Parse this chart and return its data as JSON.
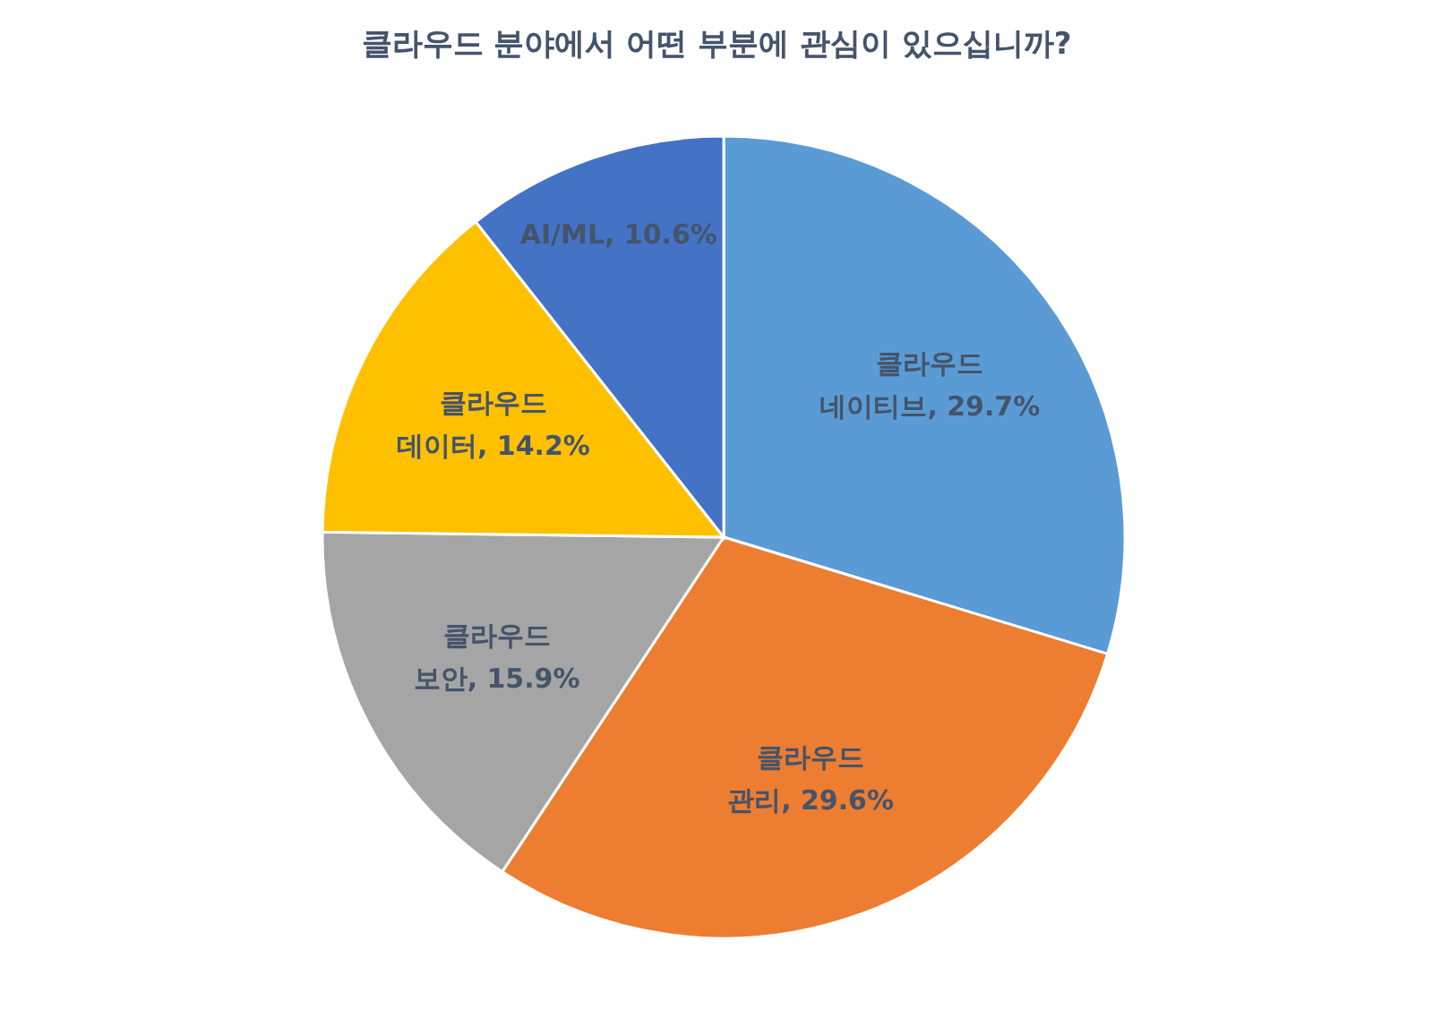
{
  "chart_data": {
    "type": "pie",
    "title": "클라우드 분야에서 어떤 부분에 관심이 있으십니까?",
    "categories": [
      "클라우드 네이티브",
      "클라우드 관리",
      "클라우드 보안",
      "클라우드 데이터",
      "AI/ML"
    ],
    "values": [
      29.7,
      29.6,
      15.9,
      14.2,
      10.6
    ],
    "value_labels": [
      "29.7%",
      "29.6%",
      "15.9%",
      "14.2%",
      "10.6%"
    ],
    "colors": [
      "#5b9bd5",
      "#ed7d31",
      "#a5a5a5",
      "#ffc000",
      "#4472c4"
    ]
  }
}
